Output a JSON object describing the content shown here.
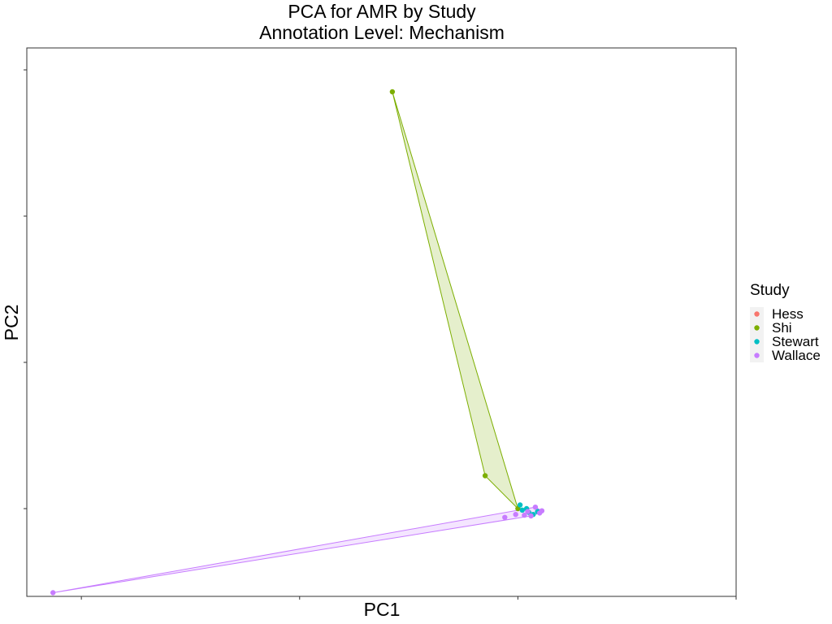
{
  "chart_data": {
    "type": "scatter",
    "title": "PCA for AMR by Study",
    "subtitle": "Annotation Level: Mechanism",
    "xlabel": "PC1",
    "ylabel": "PC2",
    "xlim": [
      -0.45,
      0.2
    ],
    "ylim": [
      -0.12,
      0.63
    ],
    "x_ticks": [
      -0.4,
      -0.2,
      0.0,
      0.2
    ],
    "y_ticks": [
      0.0,
      0.2,
      0.4,
      0.6
    ],
    "tick_labels_shown": false,
    "grid": false,
    "legend": {
      "title": "Study",
      "position": "right"
    },
    "series": [
      {
        "name": "Hess",
        "color": "#F8766D",
        "points": []
      },
      {
        "name": "Shi",
        "color": "#7CAE00",
        "points": [
          {
            "x": -0.115,
            "y": 0.57
          },
          {
            "x": -0.03,
            "y": 0.045
          },
          {
            "x": 0.0,
            "y": 0.0
          }
        ],
        "hull": true
      },
      {
        "name": "Stewart",
        "color": "#00BFC4",
        "points": [
          {
            "x": 0.002,
            "y": 0.005
          },
          {
            "x": 0.008,
            "y": 0.0
          },
          {
            "x": 0.014,
            "y": -0.008
          },
          {
            "x": 0.018,
            "y": -0.004
          },
          {
            "x": 0.01,
            "y": -0.005
          },
          {
            "x": 0.004,
            "y": -0.002
          }
        ],
        "hull": false
      },
      {
        "name": "Wallace",
        "color": "#C77CFF",
        "points": [
          {
            "x": -0.426,
            "y": -0.115
          },
          {
            "x": -0.012,
            "y": -0.012
          },
          {
            "x": -0.002,
            "y": -0.008
          },
          {
            "x": 0.006,
            "y": -0.009
          },
          {
            "x": 0.012,
            "y": -0.01
          },
          {
            "x": 0.016,
            "y": 0.002
          },
          {
            "x": 0.022,
            "y": -0.003
          },
          {
            "x": 0.02,
            "y": -0.006
          },
          {
            "x": 0.009,
            "y": -0.004
          }
        ],
        "hull": true
      }
    ]
  }
}
